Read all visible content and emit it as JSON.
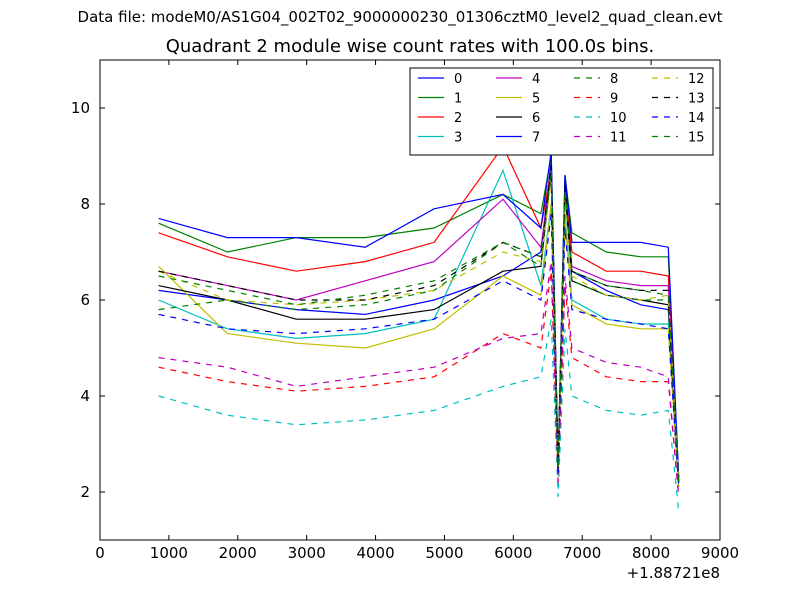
{
  "figure": {
    "suptitle": "Data file: modeM0/AS1G04_002T02_9000000230_01306cztM0_level2_quad_clean.evt",
    "title": "Quadrant 2 module wise count rates with 100.0s bins."
  },
  "chart_data": {
    "type": "line",
    "title": "Quadrant 2 module wise count rates with 100.0s bins.",
    "xlabel": "",
    "ylabel": "",
    "xlim": [
      0,
      9000
    ],
    "ylim": [
      1,
      11
    ],
    "xticks": [
      0,
      1000,
      2000,
      3000,
      4000,
      5000,
      6000,
      7000,
      8000,
      9000
    ],
    "yticks": [
      2,
      4,
      6,
      8,
      10
    ],
    "x_offset_label": "+1.88721e8",
    "grid": false,
    "legend": "top-right, 4 columns",
    "x": [
      850,
      1850,
      2850,
      3850,
      4850,
      5850,
      6400,
      6550,
      6650,
      6750,
      6850,
      7350,
      7850,
      8250,
      8400
    ],
    "series": [
      {
        "name": "0",
        "color": "#0000ff",
        "dash": "solid",
        "values": [
          6.2,
          6.0,
          5.8,
          5.7,
          6.0,
          6.5,
          7.0,
          8.9,
          2.5,
          8.5,
          6.6,
          6.2,
          5.9,
          5.8,
          2.2
        ]
      },
      {
        "name": "1",
        "color": "#008000",
        "dash": "solid",
        "values": [
          7.6,
          7.0,
          7.3,
          7.3,
          7.5,
          8.2,
          7.8,
          9.0,
          2.6,
          8.6,
          7.4,
          7.0,
          6.9,
          6.9,
          2.3
        ]
      },
      {
        "name": "2",
        "color": "#ff0000",
        "dash": "solid",
        "values": [
          7.4,
          6.9,
          6.6,
          6.8,
          7.2,
          9.2,
          7.5,
          8.7,
          2.6,
          8.3,
          7.0,
          6.6,
          6.6,
          6.5,
          2.3
        ]
      },
      {
        "name": "3",
        "color": "#00bfbf",
        "dash": "solid",
        "values": [
          6.0,
          5.4,
          5.2,
          5.3,
          5.6,
          8.7,
          6.3,
          8.0,
          2.4,
          7.8,
          6.0,
          5.6,
          5.5,
          5.5,
          2.1
        ]
      },
      {
        "name": "4",
        "color": "#bf00bf",
        "dash": "solid",
        "values": [
          6.6,
          6.3,
          6.0,
          6.4,
          6.8,
          8.1,
          7.1,
          8.6,
          2.5,
          8.2,
          6.7,
          6.4,
          6.3,
          6.3,
          2.2
        ]
      },
      {
        "name": "5",
        "color": "#bfbf00",
        "dash": "solid",
        "values": [
          6.7,
          5.3,
          5.1,
          5.0,
          5.4,
          6.5,
          6.1,
          8.0,
          2.4,
          7.7,
          5.9,
          5.5,
          5.4,
          5.4,
          2.1
        ]
      },
      {
        "name": "6",
        "color": "#000000",
        "dash": "solid",
        "values": [
          6.3,
          6.0,
          5.6,
          5.6,
          5.8,
          6.6,
          6.7,
          8.7,
          2.5,
          8.3,
          6.4,
          6.1,
          6.0,
          5.9,
          2.2
        ]
      },
      {
        "name": "7",
        "color": "#0000ff",
        "dash": "solid",
        "values": [
          7.7,
          7.3,
          7.3,
          7.1,
          7.9,
          8.2,
          7.5,
          9.1,
          2.6,
          8.6,
          7.2,
          7.2,
          7.2,
          7.1,
          2.3
        ]
      },
      {
        "name": "8",
        "color": "#008000",
        "dash": "dashed",
        "values": [
          5.8,
          6.0,
          5.8,
          5.9,
          6.2,
          7.2,
          6.7,
          8.7,
          2.5,
          8.3,
          6.4,
          6.1,
          6.0,
          6.0,
          2.2
        ]
      },
      {
        "name": "9",
        "color": "#ff0000",
        "dash": "dashed",
        "values": [
          4.6,
          4.3,
          4.1,
          4.2,
          4.4,
          5.3,
          5.0,
          6.6,
          2.2,
          6.3,
          4.8,
          4.4,
          4.3,
          4.3,
          1.9
        ]
      },
      {
        "name": "10",
        "color": "#00bfbf",
        "dash": "dashed",
        "values": [
          4.0,
          3.6,
          3.4,
          3.5,
          3.7,
          4.2,
          4.4,
          5.6,
          1.9,
          5.4,
          4.0,
          3.7,
          3.6,
          3.7,
          1.6
        ]
      },
      {
        "name": "11",
        "color": "#bf00bf",
        "dash": "dashed",
        "values": [
          4.8,
          4.6,
          4.2,
          4.4,
          4.6,
          5.2,
          5.3,
          6.8,
          2.2,
          6.5,
          5.0,
          4.7,
          4.6,
          4.4,
          1.9
        ]
      },
      {
        "name": "12",
        "color": "#bfbf00",
        "dash": "dashed",
        "values": [
          6.6,
          6.0,
          5.9,
          6.0,
          6.2,
          7.0,
          6.8,
          8.5,
          2.5,
          8.1,
          6.5,
          6.1,
          6.0,
          6.1,
          2.2
        ]
      },
      {
        "name": "13",
        "color": "#000000",
        "dash": "dashed",
        "values": [
          6.6,
          6.3,
          6.0,
          6.0,
          6.3,
          7.2,
          6.9,
          8.8,
          2.5,
          8.4,
          6.6,
          6.3,
          6.2,
          6.2,
          2.2
        ]
      },
      {
        "name": "14",
        "color": "#0000ff",
        "dash": "dashed",
        "values": [
          5.7,
          5.4,
          5.3,
          5.4,
          5.6,
          6.4,
          6.0,
          7.8,
          2.4,
          7.5,
          5.8,
          5.6,
          5.5,
          5.4,
          2.1
        ]
      },
      {
        "name": "15",
        "color": "#008000",
        "dash": "dashed",
        "values": [
          6.5,
          6.2,
          5.9,
          6.1,
          6.4,
          7.2,
          6.9,
          8.6,
          2.5,
          8.3,
          6.6,
          6.3,
          6.2,
          6.1,
          2.2
        ]
      }
    ]
  }
}
